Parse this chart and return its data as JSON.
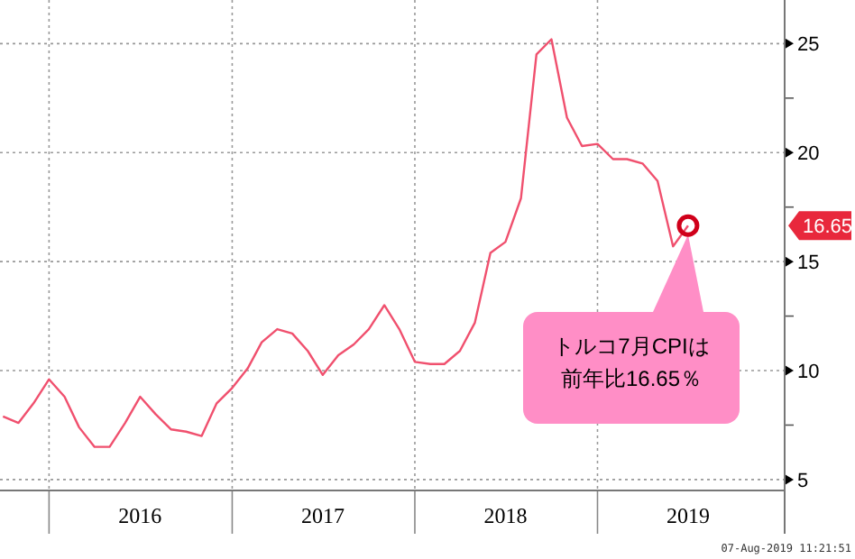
{
  "chart_data": {
    "type": "line",
    "x": [
      "2015-10",
      "2015-11",
      "2015-12",
      "2016-01",
      "2016-02",
      "2016-03",
      "2016-04",
      "2016-05",
      "2016-06",
      "2016-07",
      "2016-08",
      "2016-09",
      "2016-10",
      "2016-11",
      "2016-12",
      "2017-01",
      "2017-02",
      "2017-03",
      "2017-04",
      "2017-05",
      "2017-06",
      "2017-07",
      "2017-08",
      "2017-09",
      "2017-10",
      "2017-11",
      "2017-12",
      "2018-01",
      "2018-02",
      "2018-03",
      "2018-04",
      "2018-05",
      "2018-06",
      "2018-07",
      "2018-08",
      "2018-09",
      "2018-10",
      "2018-11",
      "2018-12",
      "2019-01",
      "2019-02",
      "2019-03",
      "2019-04",
      "2019-05",
      "2019-06",
      "2019-07"
    ],
    "series": [
      {
        "color": "#f0506e",
        "values": [
          7.9,
          7.6,
          8.5,
          9.6,
          8.8,
          7.4,
          6.5,
          6.5,
          7.6,
          8.8,
          8.0,
          7.3,
          7.2,
          7.0,
          8.5,
          9.2,
          10.1,
          11.3,
          11.9,
          11.7,
          10.9,
          9.8,
          10.7,
          11.2,
          11.9,
          13.0,
          11.9,
          10.4,
          10.3,
          10.3,
          10.9,
          12.2,
          15.4,
          15.9,
          17.9,
          24.5,
          25.2,
          21.6,
          20.3,
          20.4,
          19.7,
          19.7,
          19.5,
          18.7,
          15.7,
          16.65
        ],
        "value_labels": [
          null,
          null,
          null,
          null,
          null,
          null,
          null,
          null,
          null,
          null,
          null,
          null,
          null,
          null,
          null,
          null,
          null,
          null,
          null,
          null,
          null,
          null,
          null,
          null,
          null,
          null,
          null,
          null,
          null,
          null,
          null,
          null,
          null,
          null,
          null,
          null,
          null,
          null,
          null,
          null,
          null,
          null,
          null,
          null,
          null,
          null
        ]
      }
    ],
    "xlim": [
      "2015-09-25",
      "2020-01-10"
    ],
    "xticks": [
      {
        "value": "2016-01-01",
        "label": null
      },
      {
        "value": "2016-07-01",
        "label": "2016"
      },
      {
        "value": "2017-01-01",
        "label": null
      },
      {
        "value": "2017-07-01",
        "label": "2017"
      },
      {
        "value": "2018-01-01",
        "label": null
      },
      {
        "value": "2018-07-01",
        "label": "2018"
      },
      {
        "value": "2019-01-01",
        "label": null
      },
      {
        "value": "2019-07-01",
        "label": "2019"
      }
    ],
    "ylim": [
      4.5,
      27
    ],
    "yticks": [
      5,
      {
        "value": 7.5,
        "label": null
      },
      10,
      {
        "value": 12.5,
        "label": null
      },
      15,
      {
        "value": 17.5,
        "label": null
      },
      20,
      {
        "value": 22.5,
        "label": null
      },
      25
    ],
    "grid": true,
    "annotations": [
      "トルコ7月CPIは前年比16.65％",
      "16.65",
      "07-Aug-2019 11:21:51"
    ]
  }
}
